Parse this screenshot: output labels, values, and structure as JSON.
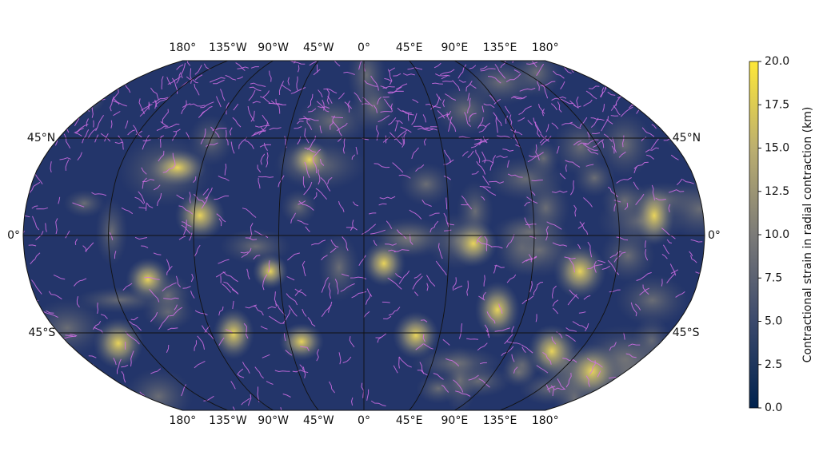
{
  "map": {
    "top_lon_labels": [
      "180°",
      "135°W",
      "90°W",
      "45°W",
      "0°",
      "45°E",
      "90°E",
      "135°E",
      "180°"
    ],
    "bottom_lon_labels": [
      "180°",
      "135°W",
      "90°W",
      "45°W",
      "0°",
      "45°E",
      "90°E",
      "135°E",
      "180°"
    ],
    "left_lat_labels": [
      "45°N",
      "0°",
      "45°S"
    ],
    "right_lat_labels": [
      "45°N",
      "0°",
      "45°S"
    ]
  },
  "colorbar": {
    "label": "Contractional strain in radial contraction (km)",
    "lim": [
      0,
      20
    ],
    "ticks": [
      {
        "value": 0,
        "label": "0.0"
      },
      2.5,
      {
        "value": 5,
        "label": "5.0"
      },
      7.5,
      {
        "value": 10,
        "label": "10.0"
      },
      12.5,
      {
        "value": 15,
        "label": "15.0"
      },
      17.5,
      {
        "value": 20,
        "label": "20.0"
      }
    ]
  }
}
